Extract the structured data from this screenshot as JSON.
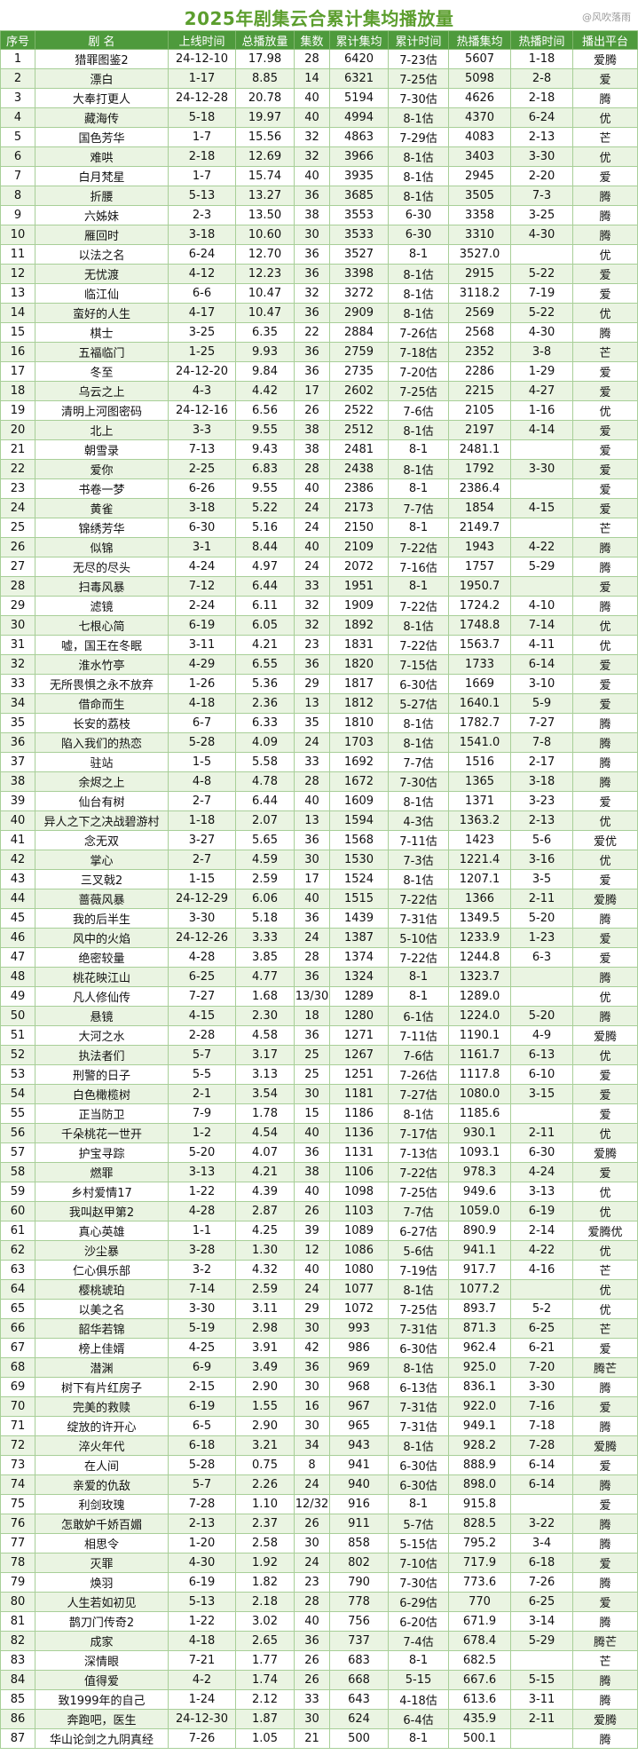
{
  "watermark": "@风吹落雨",
  "colors": {
    "title": "#5c9e2e",
    "header_bg": "#4e9a3c",
    "stripe": "#eaf4e2",
    "grid": "#a8cf98"
  },
  "chart_data": {
    "type": "table",
    "title": "2025年剧集云合累计集均播放量",
    "columns": [
      "序号",
      "剧 名",
      "上线时间",
      "总播放量",
      "集数",
      "累计集均",
      "累计时间",
      "热播集均",
      "热播时间",
      "播出平台"
    ],
    "rows": [
      [
        "1",
        "猎罪图鉴2",
        "24-12-10",
        "17.98",
        "28",
        "6420",
        "7-23估",
        "5607",
        "1-18",
        "爱腾"
      ],
      [
        "2",
        "漂白",
        "1-17",
        "8.85",
        "14",
        "6321",
        "7-25估",
        "5098",
        "2-8",
        "爱"
      ],
      [
        "3",
        "大奉打更人",
        "24-12-28",
        "20.78",
        "40",
        "5194",
        "7-30估",
        "4626",
        "2-18",
        "腾"
      ],
      [
        "4",
        "藏海传",
        "5-18",
        "19.97",
        "40",
        "4994",
        "8-1估",
        "4370",
        "6-24",
        "优"
      ],
      [
        "5",
        "国色芳华",
        "1-7",
        "15.56",
        "32",
        "4863",
        "7-29估",
        "4083",
        "2-13",
        "芒"
      ],
      [
        "6",
        "难哄",
        "2-18",
        "12.69",
        "32",
        "3966",
        "8-1估",
        "3403",
        "3-30",
        "优"
      ],
      [
        "7",
        "白月梵星",
        "1-7",
        "15.74",
        "40",
        "3935",
        "8-1估",
        "2945",
        "2-20",
        "爱"
      ],
      [
        "8",
        "折腰",
        "5-13",
        "13.27",
        "36",
        "3685",
        "8-1估",
        "3505",
        "7-3",
        "腾"
      ],
      [
        "9",
        "六姊妹",
        "2-3",
        "13.50",
        "38",
        "3553",
        "6-30",
        "3358",
        "3-25",
        "腾"
      ],
      [
        "10",
        "雁回时",
        "3-18",
        "10.60",
        "30",
        "3533",
        "6-30",
        "3310",
        "4-30",
        "腾"
      ],
      [
        "11",
        "以法之名",
        "6-24",
        "12.70",
        "36",
        "3527",
        "8-1",
        "3527.0",
        "",
        "优"
      ],
      [
        "12",
        "无忧渡",
        "4-12",
        "12.23",
        "36",
        "3398",
        "8-1估",
        "2915",
        "5-22",
        "爱"
      ],
      [
        "13",
        "临江仙",
        "6-6",
        "10.47",
        "32",
        "3272",
        "8-1估",
        "3118.2",
        "7-19",
        "爱"
      ],
      [
        "14",
        "蛮好的人生",
        "4-17",
        "10.47",
        "36",
        "2909",
        "8-1估",
        "2569",
        "5-22",
        "优"
      ],
      [
        "15",
        "棋士",
        "3-25",
        "6.35",
        "22",
        "2884",
        "7-26估",
        "2568",
        "4-30",
        "腾"
      ],
      [
        "16",
        "五福临门",
        "1-25",
        "9.93",
        "36",
        "2759",
        "7-18估",
        "2352",
        "3-8",
        "芒"
      ],
      [
        "17",
        "冬至",
        "24-12-20",
        "9.84",
        "36",
        "2735",
        "7-20估",
        "2286",
        "1-29",
        "爱"
      ],
      [
        "18",
        "乌云之上",
        "4-3",
        "4.42",
        "17",
        "2602",
        "7-25估",
        "2215",
        "4-27",
        "爱"
      ],
      [
        "19",
        "清明上河图密码",
        "24-12-16",
        "6.56",
        "26",
        "2522",
        "7-6估",
        "2105",
        "1-16",
        "优"
      ],
      [
        "20",
        "北上",
        "3-3",
        "9.55",
        "38",
        "2512",
        "8-1估",
        "2197",
        "4-14",
        "爱"
      ],
      [
        "21",
        "朝雪录",
        "7-13",
        "9.43",
        "38",
        "2481",
        "8-1",
        "2481.1",
        "",
        "爱"
      ],
      [
        "22",
        "爱你",
        "2-25",
        "6.83",
        "28",
        "2438",
        "8-1估",
        "1792",
        "3-30",
        "爱"
      ],
      [
        "23",
        "书卷一梦",
        "6-26",
        "9.55",
        "40",
        "2386",
        "8-1",
        "2386.4",
        "",
        "爱"
      ],
      [
        "24",
        "黄雀",
        "3-18",
        "5.22",
        "24",
        "2173",
        "7-7估",
        "1854",
        "4-15",
        "爱"
      ],
      [
        "25",
        "锦绣芳华",
        "6-30",
        "5.16",
        "24",
        "2150",
        "8-1",
        "2149.7",
        "",
        "芒"
      ],
      [
        "26",
        "似锦",
        "3-1",
        "8.44",
        "40",
        "2109",
        "7-22估",
        "1943",
        "4-22",
        "腾"
      ],
      [
        "27",
        "无尽的尽头",
        "4-24",
        "4.97",
        "24",
        "2072",
        "7-16估",
        "1757",
        "5-29",
        "腾"
      ],
      [
        "28",
        "扫毒风暴",
        "7-12",
        "6.44",
        "33",
        "1951",
        "8-1",
        "1950.7",
        "",
        "爱"
      ],
      [
        "29",
        "滤镜",
        "2-24",
        "6.11",
        "32",
        "1909",
        "7-22估",
        "1724.2",
        "4-10",
        "腾"
      ],
      [
        "30",
        "七根心简",
        "6-19",
        "6.05",
        "32",
        "1892",
        "8-1估",
        "1748.8",
        "7-14",
        "优"
      ],
      [
        "31",
        "嘘，国王在冬眠",
        "3-11",
        "4.21",
        "23",
        "1831",
        "7-22估",
        "1563.7",
        "4-11",
        "优"
      ],
      [
        "32",
        "淮水竹亭",
        "4-29",
        "6.55",
        "36",
        "1820",
        "7-15估",
        "1733",
        "6-14",
        "爱"
      ],
      [
        "33",
        "无所畏惧之永不放弃",
        "1-26",
        "5.36",
        "29",
        "1817",
        "6-30估",
        "1669",
        "3-10",
        "爱"
      ],
      [
        "34",
        "借命而生",
        "4-18",
        "2.36",
        "13",
        "1812",
        "5-27估",
        "1640.1",
        "5-9",
        "爱"
      ],
      [
        "35",
        "长安的荔枝",
        "6-7",
        "6.33",
        "35",
        "1810",
        "8-1估",
        "1782.7",
        "7-27",
        "腾"
      ],
      [
        "36",
        "陷入我们的热恋",
        "5-28",
        "4.09",
        "24",
        "1703",
        "8-1估",
        "1541.0",
        "7-8",
        "腾"
      ],
      [
        "37",
        "驻站",
        "1-5",
        "5.58",
        "33",
        "1692",
        "7-7估",
        "1516",
        "2-17",
        "腾"
      ],
      [
        "38",
        "余烬之上",
        "4-8",
        "4.78",
        "28",
        "1672",
        "7-30估",
        "1365",
        "3-18",
        "腾"
      ],
      [
        "39",
        "仙台有树",
        "2-7",
        "6.44",
        "40",
        "1609",
        "8-1估",
        "1371",
        "3-23",
        "爱"
      ],
      [
        "40",
        "异人之下之决战碧游村",
        "1-18",
        "2.07",
        "13",
        "1594",
        "4-3估",
        "1363.2",
        "2-13",
        "优"
      ],
      [
        "41",
        "念无双",
        "3-27",
        "5.65",
        "36",
        "1568",
        "7-11估",
        "1423",
        "5-6",
        "爱优"
      ],
      [
        "42",
        "掌心",
        "2-7",
        "4.59",
        "30",
        "1530",
        "7-3估",
        "1221.4",
        "3-16",
        "优"
      ],
      [
        "43",
        "三叉戟2",
        "1-15",
        "2.59",
        "17",
        "1524",
        "8-1估",
        "1207.1",
        "3-5",
        "爱"
      ],
      [
        "44",
        "蔷薇风暴",
        "24-12-29",
        "6.06",
        "40",
        "1515",
        "7-22估",
        "1366",
        "2-11",
        "爱腾"
      ],
      [
        "45",
        "我的后半生",
        "3-30",
        "5.18",
        "36",
        "1439",
        "7-31估",
        "1349.5",
        "5-20",
        "腾"
      ],
      [
        "46",
        "风中的火焰",
        "24-12-26",
        "3.33",
        "24",
        "1387",
        "5-10估",
        "1233.9",
        "1-23",
        "爱"
      ],
      [
        "47",
        "绝密较量",
        "4-28",
        "3.85",
        "28",
        "1374",
        "7-22估",
        "1244.8",
        "6-3",
        "爱"
      ],
      [
        "48",
        "桃花映江山",
        "6-25",
        "4.77",
        "36",
        "1324",
        "8-1",
        "1323.7",
        "",
        "腾"
      ],
      [
        "49",
        "凡人修仙传",
        "7-27",
        "1.68",
        "13/30",
        "1289",
        "8-1",
        "1289.0",
        "",
        "优"
      ],
      [
        "50",
        "悬镜",
        "4-15",
        "2.30",
        "18",
        "1280",
        "6-1估",
        "1224.0",
        "5-20",
        "腾"
      ],
      [
        "51",
        "大河之水",
        "2-28",
        "4.58",
        "36",
        "1271",
        "7-11估",
        "1190.1",
        "4-9",
        "爱腾"
      ],
      [
        "52",
        "执法者们",
        "5-7",
        "3.17",
        "25",
        "1267",
        "7-6估",
        "1161.7",
        "6-13",
        "优"
      ],
      [
        "53",
        "刑警的日子",
        "5-5",
        "3.13",
        "25",
        "1251",
        "7-26估",
        "1117.8",
        "6-10",
        "爱"
      ],
      [
        "54",
        "白色橄榄树",
        "2-1",
        "3.54",
        "30",
        "1181",
        "7-27估",
        "1080.0",
        "3-15",
        "爱"
      ],
      [
        "55",
        "正当防卫",
        "7-9",
        "1.78",
        "15",
        "1186",
        "8-1估",
        "1185.6",
        "",
        "爱"
      ],
      [
        "56",
        "千朵桃花一世开",
        "1-2",
        "4.54",
        "40",
        "1136",
        "7-17估",
        "930.1",
        "2-11",
        "优"
      ],
      [
        "57",
        "护宝寻踪",
        "5-20",
        "4.07",
        "36",
        "1131",
        "7-13估",
        "1093.1",
        "6-30",
        "爱腾"
      ],
      [
        "58",
        "燃罪",
        "3-13",
        "4.21",
        "38",
        "1106",
        "7-22估",
        "978.3",
        "4-24",
        "爱"
      ],
      [
        "59",
        "乡村爱情17",
        "1-22",
        "4.39",
        "40",
        "1098",
        "7-25估",
        "949.6",
        "3-13",
        "优"
      ],
      [
        "60",
        "我叫赵甲第2",
        "4-28",
        "2.87",
        "26",
        "1103",
        "7-7估",
        "1059.0",
        "6-19",
        "优"
      ],
      [
        "61",
        "真心英雄",
        "1-1",
        "4.25",
        "39",
        "1089",
        "6-27估",
        "890.9",
        "2-14",
        "爱腾优"
      ],
      [
        "62",
        "沙尘暴",
        "3-28",
        "1.30",
        "12",
        "1086",
        "5-6估",
        "941.1",
        "4-22",
        "优"
      ],
      [
        "63",
        "仁心俱乐部",
        "3-2",
        "4.32",
        "40",
        "1080",
        "7-19估",
        "917.7",
        "4-16",
        "芒"
      ],
      [
        "64",
        "樱桃琥珀",
        "7-14",
        "2.59",
        "24",
        "1077",
        "8-1估",
        "1077.2",
        "",
        "优"
      ],
      [
        "65",
        "以美之名",
        "3-30",
        "3.11",
        "29",
        "1072",
        "7-25估",
        "893.7",
        "5-2",
        "优"
      ],
      [
        "66",
        "韶华若锦",
        "5-19",
        "2.98",
        "30",
        "993",
        "7-31估",
        "871.3",
        "6-25",
        "芒"
      ],
      [
        "67",
        "榜上佳婿",
        "4-25",
        "3.91",
        "42",
        "986",
        "6-30估",
        "962.4",
        "6-21",
        "爱"
      ],
      [
        "68",
        "潜渊",
        "6-9",
        "3.49",
        "36",
        "969",
        "8-1估",
        "925.0",
        "7-20",
        "腾芒"
      ],
      [
        "69",
        "树下有片红房子",
        "2-15",
        "2.90",
        "30",
        "968",
        "6-13估",
        "836.1",
        "3-30",
        "腾"
      ],
      [
        "70",
        "完美的救赎",
        "6-19",
        "1.55",
        "16",
        "967",
        "7-31估",
        "922.0",
        "7-16",
        "爱"
      ],
      [
        "71",
        "绽放的许开心",
        "6-5",
        "2.90",
        "30",
        "965",
        "7-31估",
        "949.1",
        "7-18",
        "腾"
      ],
      [
        "72",
        "淬火年代",
        "6-18",
        "3.21",
        "34",
        "943",
        "8-1估",
        "928.2",
        "7-28",
        "爱腾"
      ],
      [
        "73",
        "在人间",
        "5-28",
        "0.75",
        "8",
        "941",
        "6-30估",
        "888.9",
        "6-14",
        "爱"
      ],
      [
        "74",
        "亲爱的仇敌",
        "5-7",
        "2.26",
        "24",
        "940",
        "6-30估",
        "898.0",
        "6-14",
        "腾"
      ],
      [
        "75",
        "利剑玫瑰",
        "7-28",
        "1.10",
        "12/32",
        "916",
        "8-1",
        "915.8",
        "",
        "爱"
      ],
      [
        "76",
        "怎敢妒千娇百媚",
        "2-13",
        "2.37",
        "26",
        "911",
        "5-7估",
        "828.5",
        "3-22",
        "腾"
      ],
      [
        "77",
        "相思令",
        "1-20",
        "2.58",
        "30",
        "858",
        "5-15估",
        "795.2",
        "3-4",
        "腾"
      ],
      [
        "78",
        "灭罪",
        "4-30",
        "1.92",
        "24",
        "802",
        "7-10估",
        "717.9",
        "6-18",
        "爱"
      ],
      [
        "79",
        "焕羽",
        "6-19",
        "1.82",
        "23",
        "790",
        "7-30估",
        "773.6",
        "7-26",
        "腾"
      ],
      [
        "80",
        "人生若如初见",
        "5-13",
        "2.18",
        "28",
        "778",
        "6-29估",
        "770",
        "6-25",
        "爱"
      ],
      [
        "81",
        "鹊刀门传奇2",
        "1-22",
        "3.02",
        "40",
        "756",
        "6-20估",
        "671.9",
        "3-14",
        "腾"
      ],
      [
        "82",
        "成家",
        "4-18",
        "2.65",
        "36",
        "737",
        "7-4估",
        "678.4",
        "5-29",
        "腾芒"
      ],
      [
        "83",
        "深情眼",
        "7-21",
        "1.77",
        "26",
        "683",
        "8-1",
        "682.5",
        "",
        "芒"
      ],
      [
        "84",
        "值得爱",
        "4-2",
        "1.74",
        "26",
        "668",
        "5-15",
        "667.6",
        "5-15",
        "腾"
      ],
      [
        "85",
        "致1999年的自己",
        "1-24",
        "2.12",
        "33",
        "643",
        "4-18估",
        "613.6",
        "3-11",
        "腾"
      ],
      [
        "86",
        "奔跑吧，医生",
        "24-12-30",
        "1.87",
        "30",
        "624",
        "6-4估",
        "435.9",
        "2-11",
        "爱腾"
      ],
      [
        "87",
        "华山论剑之九阴真经",
        "7-26",
        "1.05",
        "21",
        "500",
        "8-1",
        "500.1",
        "",
        "腾"
      ]
    ]
  }
}
